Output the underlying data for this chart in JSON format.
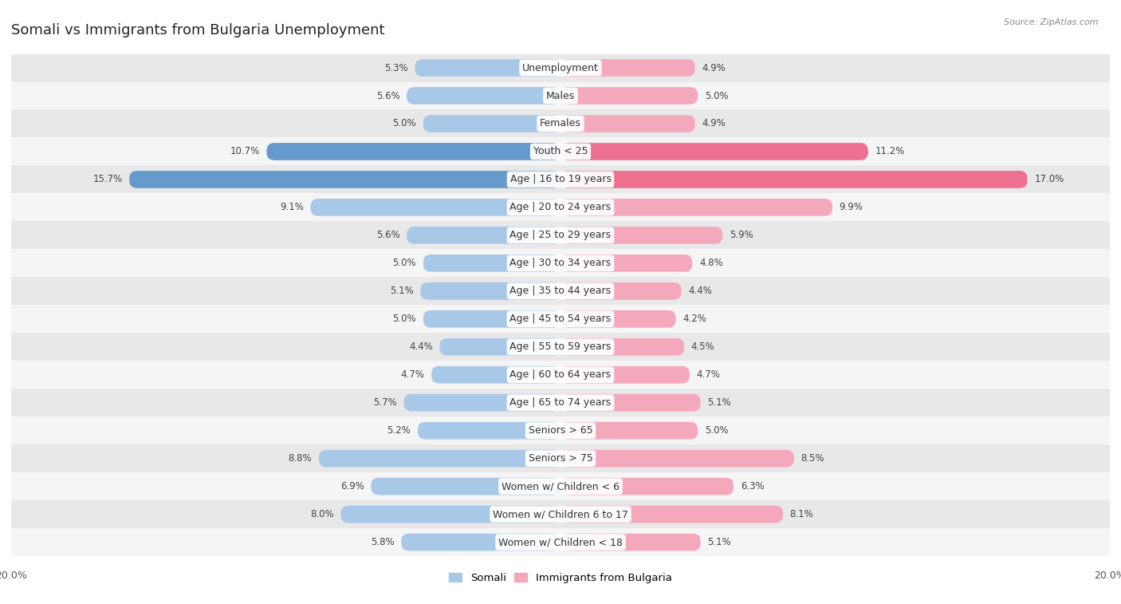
{
  "title": "Somali vs Immigrants from Bulgaria Unemployment",
  "source": "Source: ZipAtlas.com",
  "categories": [
    "Unemployment",
    "Males",
    "Females",
    "Youth < 25",
    "Age | 16 to 19 years",
    "Age | 20 to 24 years",
    "Age | 25 to 29 years",
    "Age | 30 to 34 years",
    "Age | 35 to 44 years",
    "Age | 45 to 54 years",
    "Age | 55 to 59 years",
    "Age | 60 to 64 years",
    "Age | 65 to 74 years",
    "Seniors > 65",
    "Seniors > 75",
    "Women w/ Children < 6",
    "Women w/ Children 6 to 17",
    "Women w/ Children < 18"
  ],
  "somali": [
    5.3,
    5.6,
    5.0,
    10.7,
    15.7,
    9.1,
    5.6,
    5.0,
    5.1,
    5.0,
    4.4,
    4.7,
    5.7,
    5.2,
    8.8,
    6.9,
    8.0,
    5.8
  ],
  "bulgaria": [
    4.9,
    5.0,
    4.9,
    11.2,
    17.0,
    9.9,
    5.9,
    4.8,
    4.4,
    4.2,
    4.5,
    4.7,
    5.1,
    5.0,
    8.5,
    6.3,
    8.1,
    5.1
  ],
  "somali_color": "#a8c8e8",
  "bulgaria_color": "#f4a8bc",
  "somali_highlight_color": "#6699cc",
  "bulgaria_highlight_color": "#ee7090",
  "max_value": 20.0,
  "bar_height": 0.62,
  "background_color": "#f2f2f2",
  "row_alt_color": "#e8e8e8",
  "row_base_color": "#f5f5f5",
  "label_fontsize": 9,
  "title_fontsize": 13,
  "value_fontsize": 8.5,
  "highlight_rows": [
    3,
    4
  ]
}
